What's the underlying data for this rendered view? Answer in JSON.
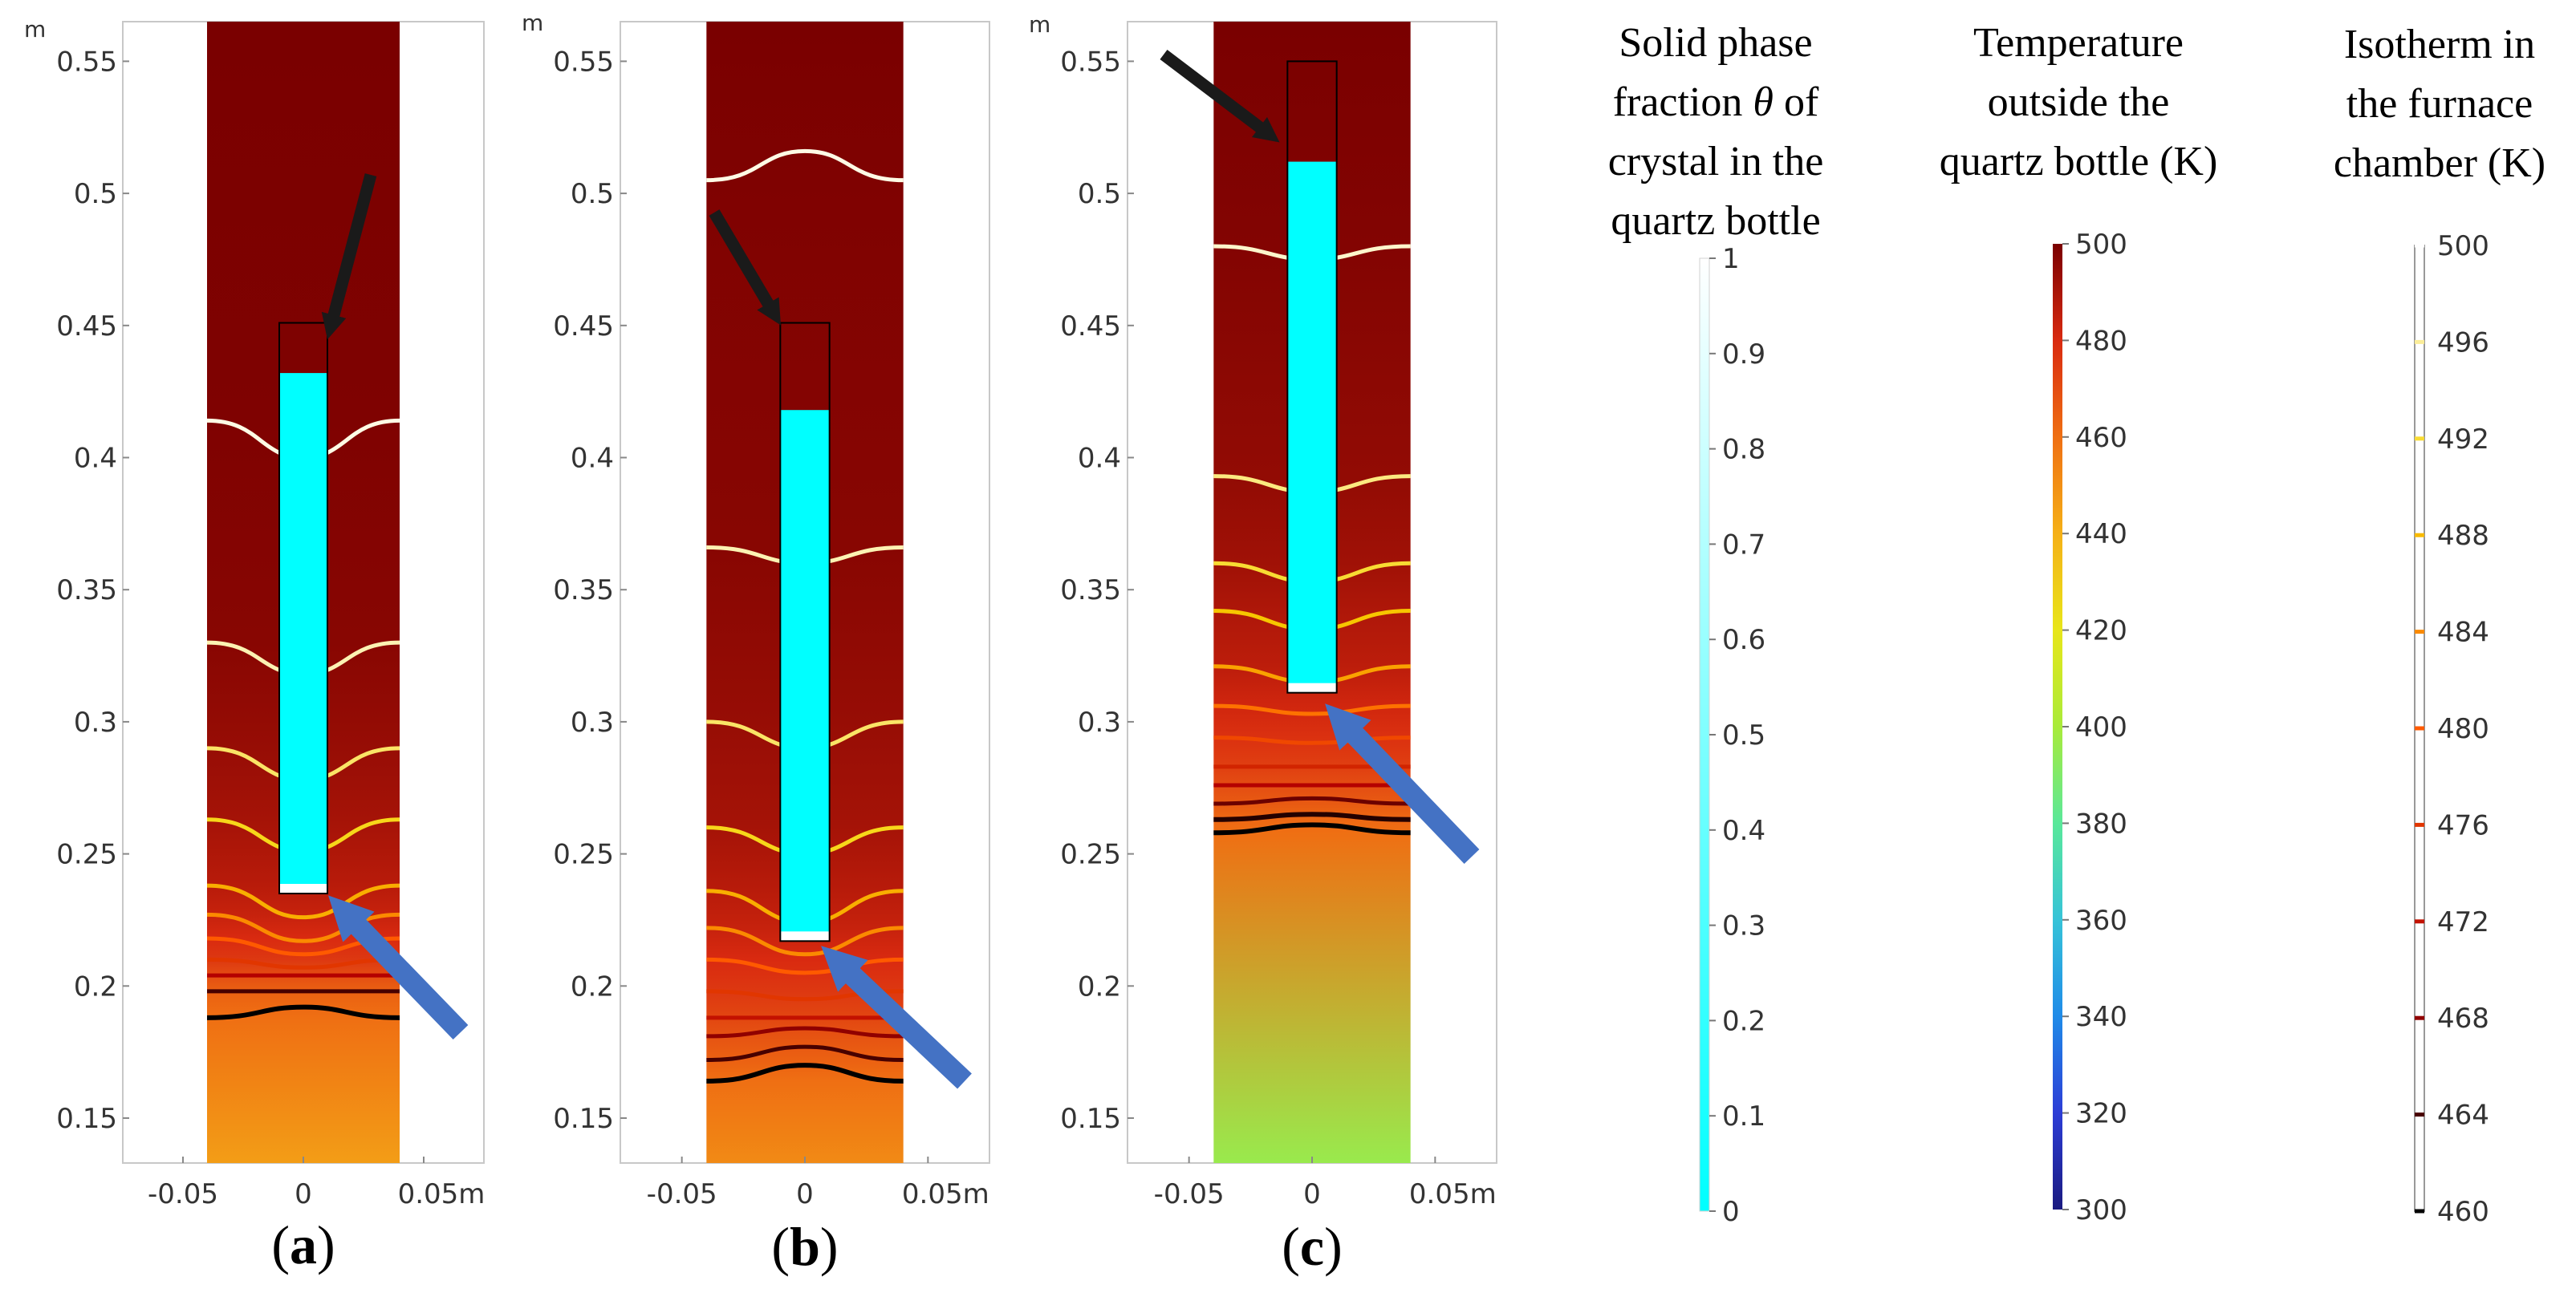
{
  "figure": {
    "colors": {
      "hot": "#7a0000",
      "crystal": "#00ffff",
      "frame": "#c8c8c8",
      "arrow_black": "#1a1a1a",
      "arrow_blue": "#4472c4"
    }
  },
  "chart_data": [
    {
      "type": "heatmap",
      "panel_label": [
        "(",
        "a",
        ")"
      ],
      "yunit": "m",
      "xunit": "m",
      "xlim": [
        -0.075,
        0.075
      ],
      "ylim": [
        0.133,
        0.565
      ],
      "xticks": [
        -0.05,
        0,
        0.05
      ],
      "xtick_labels": [
        "-0.05",
        "0",
        "0.05m"
      ],
      "yticks": [
        0.15,
        0.2,
        0.25,
        0.3,
        0.35,
        0.4,
        0.45,
        0.5,
        0.55
      ],
      "ytick_labels": [
        "0.15",
        "0.2",
        "0.25",
        "0.3",
        "0.35",
        "0.4",
        "0.45",
        "0.5",
        "0.55"
      ],
      "domain_x": [
        -0.04,
        0.04
      ],
      "domain_y": [
        0.133,
        0.565
      ],
      "hot_zone_bottom": 0.187,
      "bottle_x": [
        -0.01,
        0.01
      ],
      "bottle_y": [
        0.235,
        0.451
      ],
      "crystal_y": [
        0.237,
        0.432
      ],
      "interface_y": 0.235,
      "isotherms": [
        {
          "T": 499,
          "y": 0.414,
          "bulge": -0.014
        },
        {
          "T": 497,
          "y": 0.33,
          "bulge": -0.012
        },
        {
          "T": 494,
          "y": 0.29,
          "bulge": -0.012
        },
        {
          "T": 491,
          "y": 0.263,
          "bulge": -0.012
        },
        {
          "T": 487,
          "y": 0.238,
          "bulge": -0.012
        },
        {
          "T": 484,
          "y": 0.227,
          "bulge": -0.01
        },
        {
          "T": 480,
          "y": 0.218,
          "bulge": -0.006
        },
        {
          "T": 476,
          "y": 0.21,
          "bulge": -0.003
        },
        {
          "T": 470,
          "y": 0.204,
          "bulge": 0
        },
        {
          "T": 464,
          "y": 0.198,
          "bulge": 0
        },
        {
          "T": 460,
          "y": 0.188,
          "bulge": 0.004
        }
      ]
    },
    {
      "type": "heatmap",
      "panel_label": [
        "(",
        "b",
        ")"
      ],
      "yunit": "m",
      "xunit": "m",
      "xlim": [
        -0.075,
        0.075
      ],
      "ylim": [
        0.133,
        0.565
      ],
      "xticks": [
        -0.05,
        0,
        0.05
      ],
      "xtick_labels": [
        "-0.05",
        "0",
        "0.05m"
      ],
      "yticks": [
        0.15,
        0.2,
        0.25,
        0.3,
        0.35,
        0.4,
        0.45,
        0.5,
        0.55
      ],
      "ytick_labels": [
        "0.15",
        "0.2",
        "0.25",
        "0.3",
        "0.35",
        "0.4",
        "0.45",
        "0.5",
        "0.55"
      ],
      "domain_x": [
        -0.04,
        0.04
      ],
      "domain_y": [
        0.133,
        0.565
      ],
      "hot_zone_bottom": 0.165,
      "bottle_x": [
        -0.01,
        0.01
      ],
      "bottle_y": [
        0.217,
        0.451
      ],
      "crystal_y": [
        0.219,
        0.418
      ],
      "interface_y": 0.217,
      "isotherms": [
        {
          "T": 499,
          "y": 0.505,
          "bulge": 0.011
        },
        {
          "T": 497,
          "y": 0.366,
          "bulge": -0.006
        },
        {
          "T": 494,
          "y": 0.3,
          "bulge": -0.01
        },
        {
          "T": 491,
          "y": 0.26,
          "bulge": -0.01
        },
        {
          "T": 487,
          "y": 0.236,
          "bulge": -0.012
        },
        {
          "T": 484,
          "y": 0.222,
          "bulge": -0.01
        },
        {
          "T": 480,
          "y": 0.21,
          "bulge": -0.005
        },
        {
          "T": 476,
          "y": 0.198,
          "bulge": -0.003
        },
        {
          "T": 472,
          "y": 0.188,
          "bulge": 0
        },
        {
          "T": 468,
          "y": 0.181,
          "bulge": 0.003
        },
        {
          "T": 464,
          "y": 0.172,
          "bulge": 0.005
        },
        {
          "T": 460,
          "y": 0.164,
          "bulge": 0.006
        }
      ]
    },
    {
      "type": "heatmap",
      "panel_label": [
        "(",
        "c",
        ")"
      ],
      "yunit": "m",
      "xunit": "m",
      "xlim": [
        -0.075,
        0.075
      ],
      "ylim": [
        0.133,
        0.565
      ],
      "xticks": [
        -0.05,
        0,
        0.05
      ],
      "xtick_labels": [
        "-0.05",
        "0",
        "0.05m"
      ],
      "yticks": [
        0.15,
        0.2,
        0.25,
        0.3,
        0.35,
        0.4,
        0.45,
        0.5,
        0.55
      ],
      "ytick_labels": [
        "0.15",
        "0.2",
        "0.25",
        "0.3",
        "0.35",
        "0.4",
        "0.45",
        "0.5",
        "0.55"
      ],
      "domain_x": [
        -0.04,
        0.04
      ],
      "domain_y": [
        0.133,
        0.565
      ],
      "hot_zone_bottom": 0.256,
      "bottle_x": [
        -0.01,
        0.01
      ],
      "bottle_y": [
        0.311,
        0.55
      ],
      "crystal_y": [
        0.313,
        0.512
      ],
      "interface_y": 0.311,
      "isotherms": [
        {
          "T": 498,
          "y": 0.48,
          "bulge": -0.005
        },
        {
          "T": 495,
          "y": 0.393,
          "bulge": -0.006
        },
        {
          "T": 492,
          "y": 0.36,
          "bulge": -0.007
        },
        {
          "T": 489,
          "y": 0.342,
          "bulge": -0.007
        },
        {
          "T": 486,
          "y": 0.321,
          "bulge": -0.006
        },
        {
          "T": 482,
          "y": 0.306,
          "bulge": -0.003
        },
        {
          "T": 478,
          "y": 0.294,
          "bulge": -0.002
        },
        {
          "T": 474,
          "y": 0.283,
          "bulge": 0
        },
        {
          "T": 470,
          "y": 0.276,
          "bulge": 0
        },
        {
          "T": 466,
          "y": 0.269,
          "bulge": 0.002
        },
        {
          "T": 462,
          "y": 0.263,
          "bulge": 0.002
        },
        {
          "T": 460,
          "y": 0.258,
          "bulge": 0.003
        }
      ]
    },
    {
      "type": "colorbar",
      "title": [
        "Solid phase",
        "fraction θ of",
        "crystal in the",
        "quartz bottle"
      ],
      "range": [
        0,
        1
      ],
      "ticks": [
        0,
        0.1,
        0.2,
        0.3,
        0.4,
        0.5,
        0.6,
        0.7,
        0.8,
        0.9,
        1
      ],
      "tick_labels": [
        "0",
        "0.1",
        "0.2",
        "0.3",
        "0.4",
        "0.5",
        "0.6",
        "0.7",
        "0.8",
        "0.9",
        "1"
      ],
      "colors": [
        "#00ffff",
        "#ffffff"
      ]
    },
    {
      "type": "colorbar",
      "title": [
        "Temperature",
        "outside the",
        "quartz bottle (K)"
      ],
      "range": [
        300,
        500
      ],
      "ticks": [
        300,
        320,
        340,
        360,
        380,
        400,
        420,
        440,
        460,
        480,
        500
      ],
      "tick_labels": [
        "300",
        "320",
        "340",
        "360",
        "380",
        "400",
        "420",
        "440",
        "460",
        "480",
        "500"
      ],
      "colors": [
        "#1a1a80",
        "#2c3dd6",
        "#1f8be8",
        "#36c3d8",
        "#59e89a",
        "#a9eb3a",
        "#e8e619",
        "#f5b017",
        "#ef6f13",
        "#d92a10",
        "#7a0000"
      ]
    },
    {
      "type": "colorbar",
      "title": [
        "Isotherm in",
        "the furnace",
        "chamber (K)"
      ],
      "range": [
        460,
        500
      ],
      "ticks": [
        460,
        464,
        468,
        472,
        476,
        480,
        484,
        488,
        492,
        496,
        500
      ],
      "tick_labels": [
        "460",
        "464",
        "468",
        "472",
        "476",
        "480",
        "484",
        "488",
        "492",
        "496",
        "500"
      ],
      "colors": [
        "#000000",
        "#b40000",
        "#ff5a00",
        "#f6d200",
        "#ffffff"
      ]
    }
  ]
}
